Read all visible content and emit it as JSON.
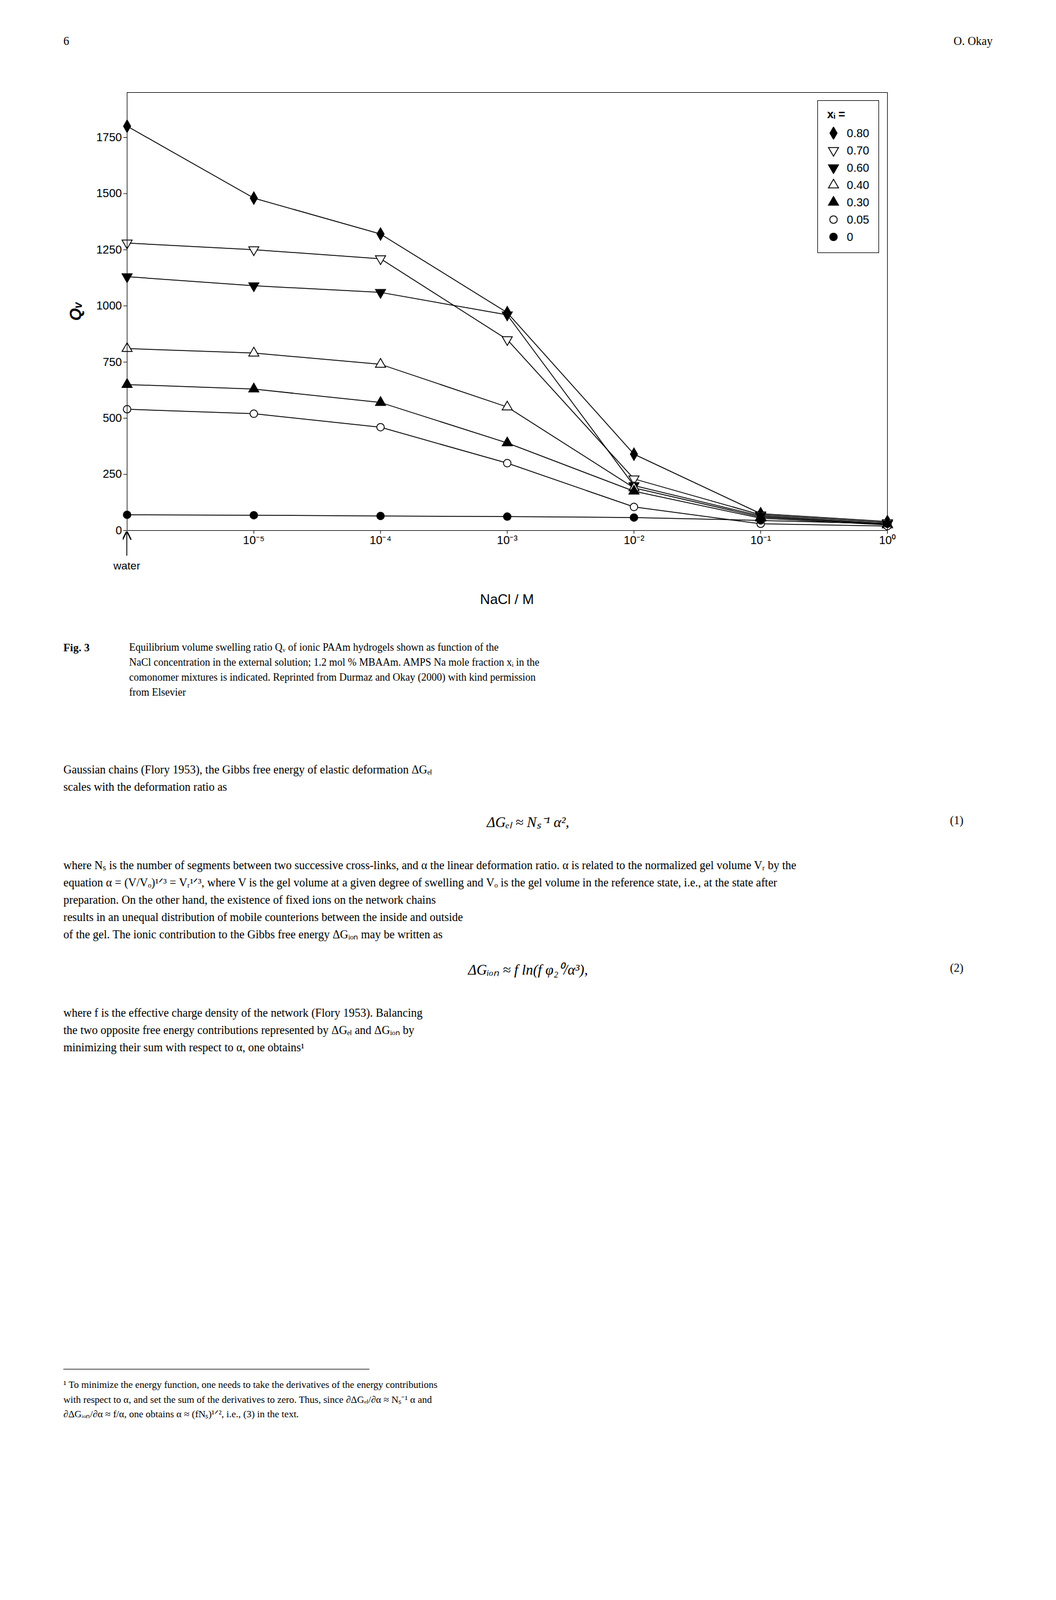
{
  "chart_data": {
    "type": "line",
    "xlabel": "NaCl / M",
    "ylabel": "Qᵥ",
    "legend_title": "xᵢ =",
    "legend": "upper right",
    "log": "x",
    "grid": false,
    "xlim": [
      1e-06,
      1.0
    ],
    "xticks": [
      {
        "value": 1e-05,
        "label": "10⁻⁵"
      },
      {
        "value": 0.0001,
        "label": "10⁻⁴"
      },
      {
        "value": 0.001,
        "label": "10⁻³"
      },
      {
        "value": 0.01,
        "label": "10⁻²"
      },
      {
        "value": 0.1,
        "label": "10⁻¹"
      },
      {
        "value": 1.0,
        "label": "10⁰"
      }
    ],
    "ylim": [
      0,
      1950
    ],
    "yticks": [
      0,
      250,
      500,
      750,
      1000,
      1250,
      1500,
      1750
    ],
    "annotations": [
      {
        "text": "water",
        "x": 1e-06
      }
    ],
    "x": [
      1e-06,
      1e-05,
      0.0001,
      0.001,
      0.01,
      0.1,
      1.0
    ],
    "series": [
      {
        "name": "0.80",
        "color": "black",
        "marker": "filled diamond",
        "values": [
          1800,
          1480,
          1320,
          970,
          340,
          75,
          40
        ]
      },
      {
        "name": "0.70",
        "color": "black",
        "marker": "open triangle-down",
        "values": [
          1280,
          1250,
          1210,
          850,
          230,
          70,
          35
        ]
      },
      {
        "name": "0.60",
        "color": "black",
        "marker": "filled triangle-down",
        "values": [
          1130,
          1090,
          1060,
          960,
          200,
          65,
          30
        ]
      },
      {
        "name": "0.40",
        "color": "black",
        "marker": "open triangle",
        "values": [
          810,
          790,
          740,
          550,
          190,
          60,
          28
        ]
      },
      {
        "name": "0.30",
        "color": "black",
        "marker": "filled triangle",
        "values": [
          650,
          630,
          570,
          390,
          175,
          55,
          25
        ]
      },
      {
        "name": "0.05",
        "color": "black",
        "marker": "open circle",
        "values": [
          540,
          520,
          460,
          300,
          105,
          30,
          20
        ]
      },
      {
        "name": "0",
        "color": "black",
        "marker": "filled circle",
        "values": [
          70,
          68,
          65,
          62,
          58,
          45,
          30
        ]
      }
    ]
  },
  "page": {
    "header_left": "6",
    "header_right": "O. Okay",
    "figure_label": "Fig. 3",
    "caption": [
      "Equilibrium volume swelling ratio Qᵥ of ionic PAAm hydrogels shown as function of the",
      "NaCl concentration in the external solution; 1.2 mol % MBAAm. AMPS Na mole fraction xᵢ in the",
      "comonomer mixtures is indicated. Reprinted from Durmaz and Okay (2000) with kind permission",
      "from Elsevier"
    ],
    "text": [
      {
        "lines": [
          "Gaussian chains (Flory 1953), the Gibbs free energy of elastic deformation ΔGₑₗ",
          "scales with the deformation ratio as"
        ]
      },
      {
        "equation": "ΔGₑₗ ≈ Nₛ⁻¹ α²,",
        "number": "(1)"
      },
      {
        "lines": [
          "where Nₛ is the number of segments between two successive cross-links, and α the linear deformation ratio. α is related to the normalized gel volume Vᵣ by the",
          "equation α = (V/Vₒ)¹ᐟ³ = Vᵣ¹ᐟ³, where V is the gel volume at a given degree of swelling and Vₒ is the gel volume in the reference state, i.e., at the state after",
          "preparation. On the other hand, the existence of fixed ions on the network chains",
          "results in an unequal distribution of mobile counterions between the inside and outside",
          "of the gel. The ionic contribution to the Gibbs free energy ΔGᵢₒₙ may be written as"
        ]
      },
      {
        "equation": "ΔGᵢₒₙ ≈ f ln(f φ₂⁰/α³),",
        "number": "(2)"
      },
      {
        "lines": [
          "where f is the effective charge density of the network (Flory 1953). Balancing",
          "the two opposite free energy contributions represented by ΔGₑₗ and ΔGᵢₒₙ by",
          "minimizing their sum with respect to α, one obtains¹"
        ]
      }
    ],
    "footnote": [
      "¹ To minimize the energy function, one needs to take the derivatives of the energy contributions",
      "with respect to α, and set the sum of the derivatives to zero. Thus, since ∂ΔGₑₗ/∂α ≈ Nₛ⁻¹ α and",
      "∂ΔGᵢₒₙ/∂α ≈ f/α, one obtains α ≈ (fNₛ)¹ᐟ², i.e., (3) in the text."
    ]
  }
}
